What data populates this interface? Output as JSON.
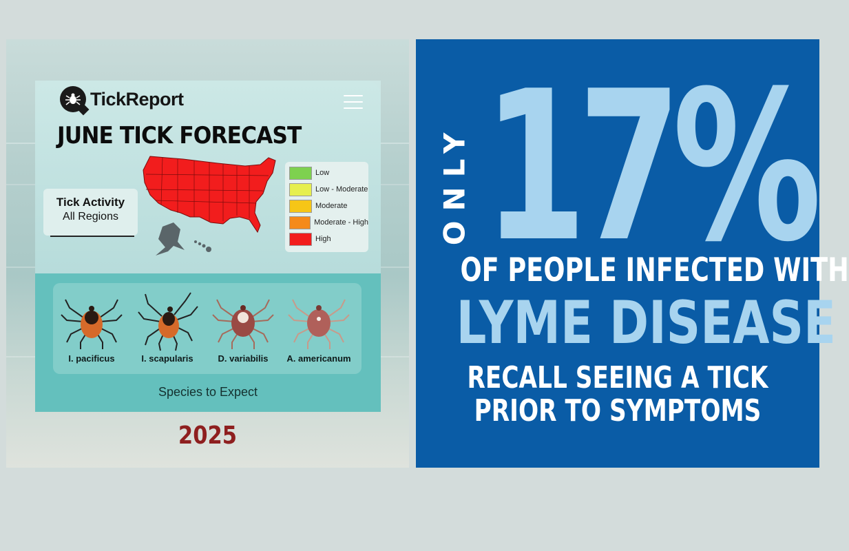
{
  "left": {
    "brand": "TickReport",
    "title": "JUNE TICK FORECAST",
    "activity": {
      "title": "Tick Activity",
      "subtitle": "All Regions"
    },
    "legend": [
      {
        "label": "Low",
        "color": "#7ed14f"
      },
      {
        "label": "Low - Moderate",
        "color": "#e6ef4f"
      },
      {
        "label": "Moderate",
        "color": "#f6c617"
      },
      {
        "label": "Moderate - High",
        "color": "#f58a1a"
      },
      {
        "label": "High",
        "color": "#f21d1d"
      }
    ],
    "species": [
      "I. pacificus",
      "I. scapularis",
      "D. variabilis",
      "A. americanum"
    ],
    "species_caption": "Species to Expect",
    "year": "2025",
    "colors": {
      "map_fill": "#f21d1d",
      "alaska_hawaii": "#5a6569",
      "year_color": "#8e1f1f"
    }
  },
  "right": {
    "only": "ONLY",
    "percent": "17%",
    "line1": "OF PEOPLE INFECTED WITH",
    "line2": "LYME DISEASE",
    "line3": "RECALL SEEING A TICK",
    "line4": "PRIOR TO SYMPTOMS",
    "colors": {
      "background": "#0a5ca6",
      "accent": "#a8d4ef"
    }
  }
}
